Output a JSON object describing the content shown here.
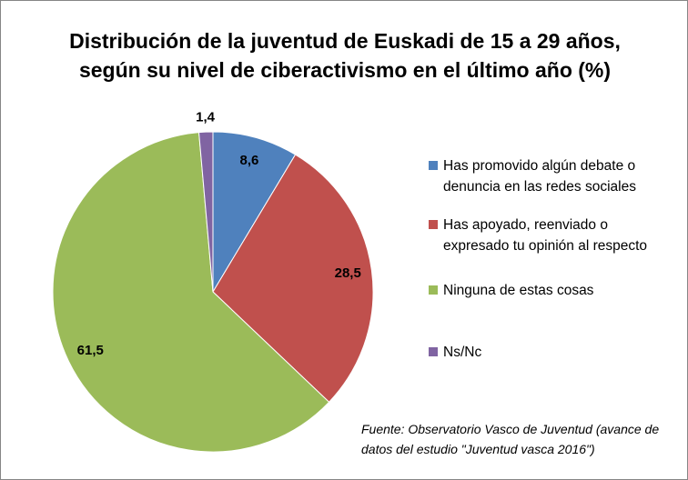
{
  "chart_data": {
    "type": "pie",
    "title": "Distribución de la juventud de Euskadi de 15 a 29 años, según su nivel de ciberactivismo en el último año (%)",
    "categories": [
      "Has promovido algún debate o denuncia en las redes sociales",
      "Has apoyado, reenviado o expresado tu opinión al respecto",
      "Ninguna de estas cosas",
      "Ns/Nc"
    ],
    "values": [
      8.6,
      28.5,
      61.5,
      1.4
    ],
    "value_labels": [
      "8,6",
      "28,5",
      "61,5",
      "1,4"
    ],
    "colors": [
      "#4f81bd",
      "#c0504d",
      "#9bbb59",
      "#8064a2"
    ],
    "legend": "right",
    "annotation": "Fuente: Observatorio Vasco de Juventud (avance de datos del estudio \"Juventud vasca 2016\")"
  }
}
